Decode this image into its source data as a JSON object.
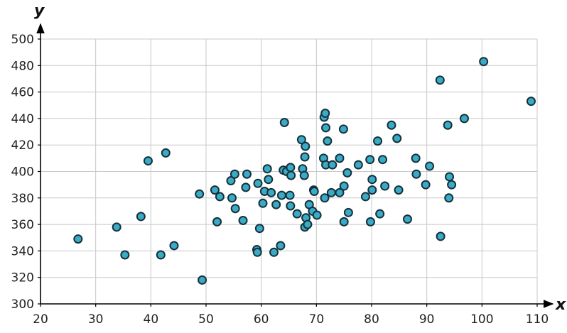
{
  "chart_data": {
    "type": "scatter",
    "title": "",
    "xlabel": "x",
    "ylabel": "y",
    "xlim": [
      20,
      110
    ],
    "ylim": [
      300,
      500
    ],
    "xticks": [
      20,
      30,
      40,
      50,
      60,
      70,
      80,
      90,
      100,
      110
    ],
    "yticks": [
      300,
      320,
      340,
      360,
      380,
      400,
      420,
      440,
      460,
      480,
      500
    ],
    "grid": true,
    "legend": "none",
    "colors": {
      "point_fill": "#3aabc6",
      "point_stroke": "#16303a",
      "grid": "#c8c8c8",
      "axis": "#000000"
    },
    "points": [
      {
        "x": 26.8,
        "y": 349
      },
      {
        "x": 33.8,
        "y": 358
      },
      {
        "x": 35.3,
        "y": 337
      },
      {
        "x": 38.2,
        "y": 366
      },
      {
        "x": 39.5,
        "y": 408
      },
      {
        "x": 41.8,
        "y": 337
      },
      {
        "x": 42.7,
        "y": 414
      },
      {
        "x": 44.2,
        "y": 344
      },
      {
        "x": 48.8,
        "y": 383
      },
      {
        "x": 49.3,
        "y": 318
      },
      {
        "x": 51.6,
        "y": 386
      },
      {
        "x": 52.0,
        "y": 362
      },
      {
        "x": 52.5,
        "y": 381
      },
      {
        "x": 54.5,
        "y": 393
      },
      {
        "x": 54.7,
        "y": 380
      },
      {
        "x": 55.2,
        "y": 398
      },
      {
        "x": 55.3,
        "y": 372
      },
      {
        "x": 56.7,
        "y": 363
      },
      {
        "x": 57.2,
        "y": 388
      },
      {
        "x": 57.4,
        "y": 398
      },
      {
        "x": 59.2,
        "y": 341
      },
      {
        "x": 59.3,
        "y": 339
      },
      {
        "x": 59.4,
        "y": 391
      },
      {
        "x": 59.7,
        "y": 357
      },
      {
        "x": 60.3,
        "y": 376
      },
      {
        "x": 60.6,
        "y": 385
      },
      {
        "x": 61.1,
        "y": 402
      },
      {
        "x": 61.3,
        "y": 394
      },
      {
        "x": 61.8,
        "y": 384
      },
      {
        "x": 62.3,
        "y": 339
      },
      {
        "x": 62.7,
        "y": 375
      },
      {
        "x": 63.5,
        "y": 344
      },
      {
        "x": 63.7,
        "y": 382
      },
      {
        "x": 64.0,
        "y": 401
      },
      {
        "x": 64.2,
        "y": 437
      },
      {
        "x": 64.6,
        "y": 400
      },
      {
        "x": 65.2,
        "y": 382
      },
      {
        "x": 65.3,
        "y": 403
      },
      {
        "x": 65.3,
        "y": 374
      },
      {
        "x": 65.4,
        "y": 397
      },
      {
        "x": 66.5,
        "y": 368
      },
      {
        "x": 67.3,
        "y": 424
      },
      {
        "x": 67.5,
        "y": 402
      },
      {
        "x": 67.8,
        "y": 397
      },
      {
        "x": 67.9,
        "y": 411
      },
      {
        "x": 67.9,
        "y": 358
      },
      {
        "x": 68.0,
        "y": 419
      },
      {
        "x": 68.1,
        "y": 365
      },
      {
        "x": 68.4,
        "y": 360
      },
      {
        "x": 68.7,
        "y": 375
      },
      {
        "x": 69.3,
        "y": 370
      },
      {
        "x": 69.5,
        "y": 386
      },
      {
        "x": 69.6,
        "y": 385
      },
      {
        "x": 70.1,
        "y": 367
      },
      {
        "x": 71.3,
        "y": 410
      },
      {
        "x": 71.4,
        "y": 441
      },
      {
        "x": 71.5,
        "y": 380
      },
      {
        "x": 71.6,
        "y": 444
      },
      {
        "x": 71.7,
        "y": 433
      },
      {
        "x": 71.7,
        "y": 405
      },
      {
        "x": 72.0,
        "y": 423
      },
      {
        "x": 72.7,
        "y": 384
      },
      {
        "x": 72.9,
        "y": 405
      },
      {
        "x": 74.2,
        "y": 384
      },
      {
        "x": 74.2,
        "y": 410
      },
      {
        "x": 74.9,
        "y": 432
      },
      {
        "x": 75.0,
        "y": 389
      },
      {
        "x": 75.0,
        "y": 362
      },
      {
        "x": 75.6,
        "y": 399
      },
      {
        "x": 75.8,
        "y": 369
      },
      {
        "x": 77.6,
        "y": 405
      },
      {
        "x": 78.9,
        "y": 381
      },
      {
        "x": 79.7,
        "y": 409
      },
      {
        "x": 79.8,
        "y": 362
      },
      {
        "x": 80.1,
        "y": 386
      },
      {
        "x": 80.1,
        "y": 394
      },
      {
        "x": 81.1,
        "y": 423
      },
      {
        "x": 81.5,
        "y": 368
      },
      {
        "x": 82.0,
        "y": 409
      },
      {
        "x": 82.4,
        "y": 389
      },
      {
        "x": 83.6,
        "y": 435
      },
      {
        "x": 84.6,
        "y": 425
      },
      {
        "x": 84.9,
        "y": 386
      },
      {
        "x": 86.5,
        "y": 364
      },
      {
        "x": 88.0,
        "y": 410
      },
      {
        "x": 88.1,
        "y": 398
      },
      {
        "x": 89.8,
        "y": 390
      },
      {
        "x": 90.5,
        "y": 404
      },
      {
        "x": 92.4,
        "y": 469
      },
      {
        "x": 92.5,
        "y": 351
      },
      {
        "x": 93.8,
        "y": 435
      },
      {
        "x": 94.0,
        "y": 380
      },
      {
        "x": 94.1,
        "y": 396
      },
      {
        "x": 94.5,
        "y": 390
      },
      {
        "x": 96.8,
        "y": 440
      },
      {
        "x": 100.3,
        "y": 483
      },
      {
        "x": 108.9,
        "y": 453
      }
    ]
  }
}
